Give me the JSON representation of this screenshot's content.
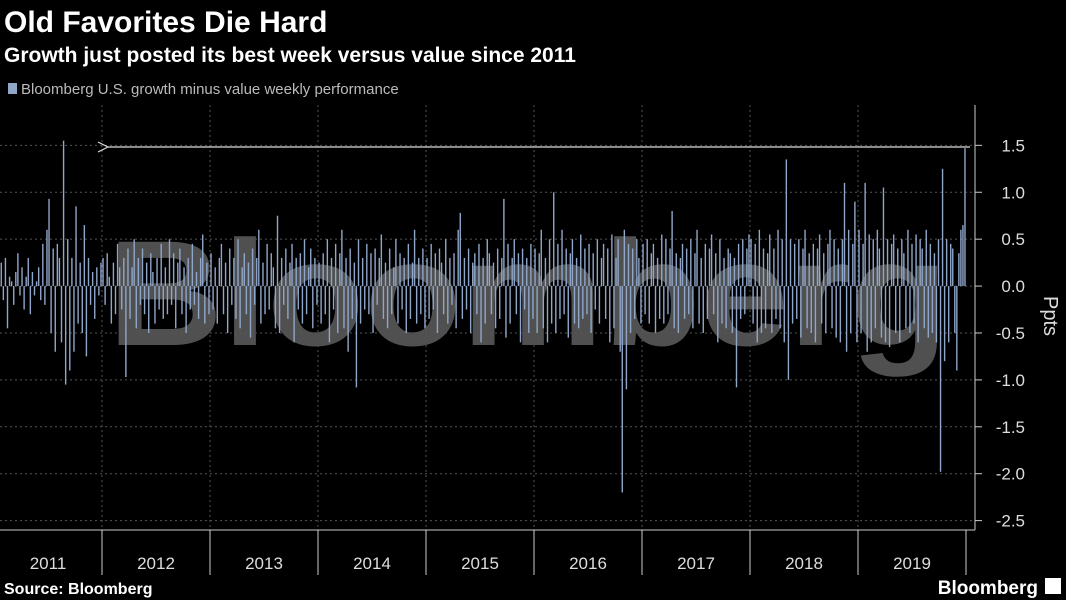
{
  "chart_data": {
    "type": "bar",
    "title": "Old Favorites Die Hard",
    "subtitle": "Growth just posted its best week versus value since 2011",
    "legend": "Bloomberg U.S. growth minus value weekly performance",
    "y_label": "Ppts",
    "watermark": "Bloomberg",
    "color": "#8fa6c9",
    "grid": true,
    "ylim": [
      -2.6,
      1.93
    ],
    "yticks": [
      1.5,
      {
        "value": 1,
        "label": "1.0"
      },
      0.5,
      {
        "value": 0,
        "label": "0.0"
      },
      -0.5,
      {
        "value": -1,
        "label": "-1.0"
      },
      -1.5,
      {
        "value": -2,
        "label": "-2.0"
      },
      -2.5
    ],
    "groups": [
      {
        "label": "2011",
        "values": [
          0.2,
          -0.3,
          0.1,
          0.25,
          -0.15,
          0.3,
          -0.45,
          0.1,
          0.05,
          -0.2,
          0.15,
          0.35,
          -0.1,
          0.2,
          -0.25,
          0.1,
          0.3,
          -0.3,
          0.15,
          -0.1,
          0.05,
          0.2,
          -0.15,
          0.45,
          -0.2,
          0.6,
          0.93,
          -0.5,
          0.4,
          -0.7,
          0.45,
          0.3,
          -0.6,
          1.55,
          -1.05,
          0.5,
          -0.9,
          0.3,
          -0.7,
          0.85,
          -0.4,
          0.25,
          -0.5,
          0.65,
          -0.75,
          0.3,
          -0.2,
          0.15,
          -0.35,
          0.2,
          -0.1,
          0.25
        ]
      },
      {
        "label": "2012",
        "values": [
          0.3,
          -0.2,
          0.35,
          0.1,
          -0.4,
          0.25,
          -0.3,
          0.45,
          0.2,
          -0.25,
          0.3,
          -0.97,
          0.4,
          -0.35,
          0.2,
          0.5,
          -0.45,
          0.3,
          -0.2,
          0.4,
          -0.3,
          0.25,
          -0.5,
          0.35,
          0.15,
          -0.4,
          0.3,
          -0.25,
          0.45,
          -0.35,
          0.2,
          -0.3,
          0.5,
          -0.2,
          0.35,
          -0.45,
          0.25,
          0.4,
          -0.3,
          0.2,
          -0.5,
          0.3,
          -0.25,
          0.45,
          -0.2,
          0.15,
          -0.35,
          0.3,
          0.55,
          -0.4,
          0.25,
          -0.3
        ]
      },
      {
        "label": "2013",
        "values": [
          0.35,
          -0.25,
          0.2,
          -0.4,
          0.3,
          0.45,
          -0.3,
          0.25,
          -0.5,
          0.4,
          -0.2,
          0.3,
          -0.35,
          0.5,
          -0.45,
          0.2,
          0.35,
          -0.3,
          0.25,
          -0.55,
          0.4,
          -0.2,
          0.3,
          0.6,
          -0.4,
          0.25,
          -0.3,
          0.45,
          -0.25,
          0.35,
          0.2,
          -0.45,
          0.75,
          -0.5,
          0.3,
          -0.2,
          0.4,
          -0.35,
          0.25,
          0.45,
          -0.6,
          0.3,
          -0.25,
          0.35,
          -0.4,
          0.5,
          -0.3,
          0.2,
          0.4,
          -0.45,
          0.3,
          -0.2
        ]
      },
      {
        "label": "2014",
        "values": [
          0.25,
          -0.4,
          0.35,
          -0.3,
          0.5,
          -0.6,
          0.3,
          -0.25,
          0.45,
          -0.5,
          0.35,
          0.6,
          -0.45,
          0.3,
          -0.7,
          0.4,
          -0.35,
          0.25,
          -1.08,
          0.5,
          -0.4,
          0.3,
          -0.25,
          0.45,
          -0.3,
          0.35,
          -0.5,
          0.4,
          -0.2,
          0.3,
          0.55,
          -0.35,
          0.25,
          -0.45,
          0.4,
          -0.3,
          0.2,
          0.5,
          -0.4,
          0.35,
          -0.25,
          0.3,
          -0.5,
          0.45,
          -0.35,
          0.25,
          0.6,
          -0.4,
          0.3,
          -0.3,
          0.4,
          -0.45
        ]
      },
      {
        "label": "2015",
        "values": [
          0.3,
          -0.35,
          0.45,
          -0.25,
          0.35,
          -0.5,
          0.4,
          0.25,
          -0.3,
          0.5,
          -0.4,
          0.3,
          -0.2,
          0.35,
          -0.45,
          0.6,
          0.78,
          -0.35,
          0.3,
          -0.25,
          0.4,
          -0.5,
          0.25,
          0.35,
          -0.3,
          0.45,
          -0.6,
          0.3,
          -0.4,
          0.5,
          0.35,
          -0.3,
          0.25,
          -0.45,
          0.4,
          -0.35,
          0.3,
          0.93,
          -0.55,
          0.45,
          -0.4,
          0.3,
          0.5,
          -0.3,
          0.35,
          -0.6,
          0.4,
          -0.25,
          0.3,
          -0.5,
          0.45,
          -0.35
        ]
      },
      {
        "label": "2016",
        "values": [
          0.4,
          -0.5,
          0.35,
          0.6,
          -0.45,
          0.3,
          -0.6,
          0.5,
          -0.4,
          1.0,
          -0.5,
          0.45,
          -0.35,
          0.6,
          -0.3,
          0.4,
          -0.55,
          0.35,
          0.5,
          -0.4,
          0.3,
          -0.45,
          0.55,
          -0.35,
          0.4,
          -0.3,
          0.45,
          -0.5,
          0.35,
          -0.25,
          0.5,
          -0.4,
          0.3,
          0.45,
          -0.35,
          0.4,
          -0.6,
          0.55,
          -0.45,
          0.3,
          0.5,
          -0.7,
          -2.2,
          0.6,
          -1.1,
          0.45,
          -0.5,
          0.4,
          -0.35,
          0.5,
          0.3,
          -0.4
        ]
      },
      {
        "label": "2017",
        "values": [
          0.45,
          -0.3,
          0.5,
          -0.4,
          0.35,
          0.45,
          -0.5,
          0.3,
          -0.35,
          0.55,
          -0.4,
          0.5,
          -0.3,
          0.4,
          0.8,
          -0.45,
          0.35,
          -0.5,
          0.3,
          0.45,
          -0.35,
          0.4,
          -0.3,
          0.5,
          -0.45,
          0.35,
          0.6,
          -0.4,
          0.3,
          -0.5,
          0.45,
          -0.35,
          0.4,
          0.55,
          -0.3,
          0.35,
          -0.6,
          0.5,
          -0.4,
          0.3,
          -0.45,
          0.4,
          0.35,
          -0.5,
          0.3,
          -1.08,
          0.45,
          -0.35,
          0.5,
          -0.3,
          0.4,
          0.55
        ]
      },
      {
        "label": "2018",
        "values": [
          0.5,
          -0.4,
          0.45,
          -0.6,
          0.6,
          -0.5,
          0.4,
          -0.45,
          0.35,
          0.55,
          -0.5,
          0.4,
          -0.35,
          0.6,
          -0.45,
          0.5,
          -0.6,
          1.35,
          -1.0,
          0.5,
          -0.4,
          0.45,
          -0.35,
          0.5,
          -0.55,
          0.4,
          0.6,
          -0.45,
          0.35,
          -0.5,
          0.45,
          -0.6,
          0.4,
          0.55,
          -0.4,
          0.35,
          -0.5,
          0.45,
          0.6,
          -0.45,
          0.5,
          -0.55,
          0.4,
          -0.6,
          0.5,
          1.1,
          -0.7,
          0.6,
          -0.5,
          0.45,
          0.9,
          -0.6
        ]
      },
      {
        "label": "2019",
        "values": [
          0.6,
          -0.5,
          0.45,
          1.1,
          -0.7,
          0.55,
          -0.6,
          0.5,
          -0.45,
          0.6,
          0.4,
          -0.55,
          1.05,
          -0.6,
          0.5,
          -0.65,
          0.45,
          0.55,
          -0.5,
          0.4,
          -0.6,
          0.5,
          0.35,
          -0.45,
          0.6,
          -0.5,
          0.45,
          -0.4,
          0.55,
          -0.6,
          0.5,
          0.4,
          -0.45,
          0.6,
          -0.55,
          0.45,
          -0.5,
          0.35,
          -0.6,
          0.5,
          -1.98,
          1.25,
          -0.8,
          0.5,
          -0.6,
          0.45,
          0.4,
          -0.5,
          -0.9,
          0.35,
          0.6,
          0.65,
          1.47
        ]
      }
    ]
  },
  "source": "Source: Bloomberg",
  "logo": "Bloomberg"
}
